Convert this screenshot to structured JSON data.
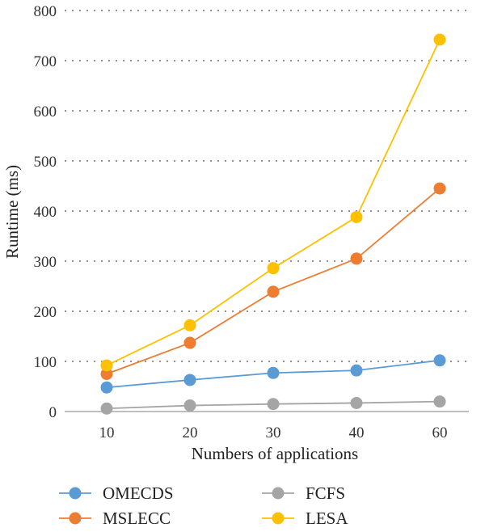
{
  "chart_data": {
    "type": "line",
    "title": "",
    "xlabel": "Numbers of applications",
    "ylabel": "Runtime (ms)",
    "categories": [
      "10",
      "20",
      "30",
      "40",
      "60"
    ],
    "ylim": [
      0,
      800
    ],
    "yticks": [
      "0",
      "100",
      "200",
      "300",
      "400",
      "500",
      "600",
      "700",
      "800"
    ],
    "grid": "horizontal-dotted",
    "legend_position": "bottom",
    "series": [
      {
        "name": "OMECDS",
        "color": "#5b9bd5",
        "values": [
          48,
          63,
          77,
          82,
          102
        ]
      },
      {
        "name": "MSLECC",
        "color": "#ed7d31",
        "values": [
          75,
          137,
          239,
          305,
          445
        ]
      },
      {
        "name": "FCFS",
        "color": "#a5a5a5",
        "values": [
          6,
          12,
          15,
          17,
          20
        ]
      },
      {
        "name": "LESA",
        "color": "#ffc000",
        "values": [
          92,
          172,
          286,
          388,
          742
        ]
      }
    ]
  }
}
